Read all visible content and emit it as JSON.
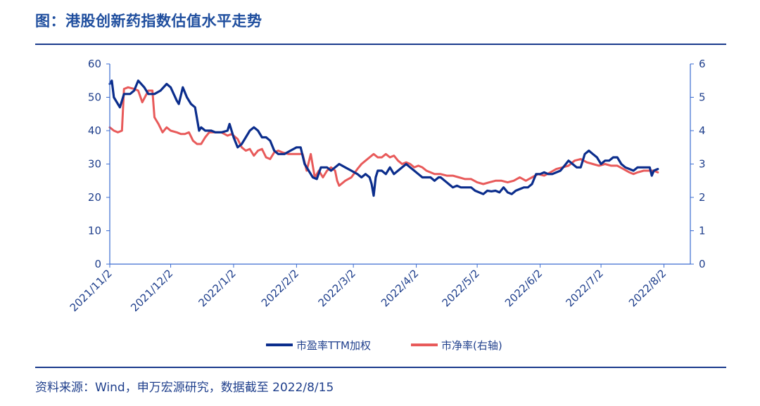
{
  "title": "图：港股创新药指数估值水平走势",
  "source": "资料来源：Wind，申万宏源研究，数据截至 2022/8/15",
  "colors": {
    "pe": "#0b2d8c",
    "pb": "#e85a5a",
    "axis": "#3a6bd0",
    "text": "#1f3f8c",
    "rule": "#1a3a8c"
  },
  "chart_data": {
    "type": "line",
    "x_dates": [
      "2021/11/2",
      "2021/12/2",
      "2022/1/2",
      "2022/2/2",
      "2022/3/2",
      "2022/4/2",
      "2022/5/2",
      "2022/6/2",
      "2022/7/2",
      "2022/8/2"
    ],
    "x_tick_labels": [
      "2021/11/2",
      "2021/12/2",
      "2022/1/2",
      "2022/2/2",
      "2022/3/2",
      "2022/4/2",
      "2022/5/2",
      "2022/6/2",
      "2022/7/2",
      "2022/8/2"
    ],
    "x_start": "2021/11/2",
    "x_end": "2022/8/15",
    "left_axis": {
      "min": 0,
      "max": 60,
      "ticks": [
        "0",
        "10",
        "20",
        "30",
        "40",
        "50",
        "60"
      ]
    },
    "right_axis": {
      "min": 0,
      "max": 6,
      "ticks": [
        "0",
        "1",
        "2",
        "3",
        "4",
        "5",
        "6"
      ]
    },
    "legend": [
      "市盈率TTM加权",
      "市净率(右轴)"
    ],
    "series": [
      {
        "name": "市盈率TTM加权",
        "axis": "left",
        "points": [
          [
            0,
            54
          ],
          [
            1,
            55
          ],
          [
            2,
            50
          ],
          [
            4,
            48
          ],
          [
            5,
            47
          ],
          [
            7,
            51
          ],
          [
            10,
            51
          ],
          [
            12,
            52
          ],
          [
            14,
            55
          ],
          [
            17,
            53
          ],
          [
            19,
            51
          ],
          [
            22,
            51
          ],
          [
            25,
            52
          ],
          [
            28,
            54
          ],
          [
            30,
            53
          ],
          [
            33,
            49
          ],
          [
            34,
            48
          ],
          [
            36,
            53
          ],
          [
            38,
            50
          ],
          [
            40,
            48
          ],
          [
            42,
            47
          ],
          [
            44,
            40
          ],
          [
            45,
            41
          ],
          [
            47,
            40
          ],
          [
            49,
            40
          ],
          [
            50,
            40
          ],
          [
            52,
            39.5
          ],
          [
            55,
            39.5
          ],
          [
            58,
            40
          ],
          [
            59,
            42
          ],
          [
            61,
            38
          ],
          [
            63,
            35
          ],
          [
            65,
            36
          ],
          [
            67,
            38
          ],
          [
            69,
            40
          ],
          [
            71,
            41
          ],
          [
            73,
            40
          ],
          [
            75,
            38
          ],
          [
            77,
            38
          ],
          [
            79,
            37
          ],
          [
            81,
            34
          ],
          [
            83,
            33
          ],
          [
            86,
            33
          ],
          [
            89,
            34
          ],
          [
            92,
            35
          ],
          [
            94,
            35
          ],
          [
            96,
            30
          ],
          [
            98,
            28
          ],
          [
            100,
            26
          ],
          [
            102,
            25.5
          ],
          [
            104,
            29
          ],
          [
            107,
            29
          ],
          [
            109,
            28
          ],
          [
            111,
            29
          ],
          [
            113,
            30
          ],
          [
            116,
            29
          ],
          [
            119,
            28
          ],
          [
            122,
            27
          ],
          [
            124,
            26
          ],
          [
            126,
            27
          ],
          [
            128,
            26
          ],
          [
            129,
            24
          ],
          [
            130,
            20.5
          ],
          [
            131,
            26
          ],
          [
            132,
            28
          ],
          [
            134,
            28
          ],
          [
            136,
            27
          ],
          [
            138,
            29
          ],
          [
            140,
            27
          ],
          [
            142,
            28
          ],
          [
            144,
            29
          ],
          [
            146,
            30
          ],
          [
            148,
            29
          ],
          [
            150,
            28
          ],
          [
            152,
            27
          ],
          [
            154,
            26
          ],
          [
            156,
            26
          ],
          [
            158,
            26
          ],
          [
            160,
            25
          ],
          [
            162,
            26
          ],
          [
            163,
            26
          ],
          [
            165,
            25
          ],
          [
            167,
            24
          ],
          [
            169,
            23
          ],
          [
            171,
            23.5
          ],
          [
            173,
            23
          ],
          [
            175,
            23
          ],
          [
            178,
            23
          ],
          [
            180,
            22
          ],
          [
            182,
            21.5
          ],
          [
            184,
            21
          ],
          [
            186,
            22
          ],
          [
            188,
            21.8
          ],
          [
            190,
            22
          ],
          [
            192,
            21.5
          ],
          [
            194,
            23
          ],
          [
            196,
            21.5
          ],
          [
            198,
            21
          ],
          [
            200,
            22
          ],
          [
            202,
            22.5
          ],
          [
            204,
            23
          ],
          [
            206,
            23
          ],
          [
            208,
            24
          ],
          [
            210,
            27
          ],
          [
            212,
            27
          ],
          [
            214,
            27.5
          ],
          [
            216,
            27
          ],
          [
            218,
            27
          ],
          [
            220,
            27.5
          ],
          [
            222,
            28
          ],
          [
            224,
            29.5
          ],
          [
            226,
            31
          ],
          [
            228,
            30
          ],
          [
            230,
            29
          ],
          [
            232,
            29
          ],
          [
            234,
            33
          ],
          [
            236,
            34
          ],
          [
            238,
            33
          ],
          [
            240,
            32
          ],
          [
            242,
            30
          ],
          [
            244,
            31
          ],
          [
            246,
            31
          ],
          [
            248,
            32
          ],
          [
            250,
            32
          ],
          [
            252,
            30
          ],
          [
            254,
            29
          ],
          [
            256,
            28.5
          ],
          [
            258,
            28
          ],
          [
            260,
            29
          ],
          [
            262,
            29
          ],
          [
            264,
            29
          ],
          [
            266,
            29
          ],
          [
            267,
            26.5
          ],
          [
            268,
            28
          ],
          [
            270,
            28.5
          ]
        ]
      },
      {
        "name": "市净率(右轴)",
        "axis": "right",
        "points": [
          [
            0,
            4.1
          ],
          [
            2,
            4.0
          ],
          [
            4,
            3.95
          ],
          [
            6,
            4.0
          ],
          [
            7,
            5.25
          ],
          [
            9,
            5.3
          ],
          [
            12,
            5.25
          ],
          [
            14,
            5.2
          ],
          [
            16,
            4.85
          ],
          [
            19,
            5.2
          ],
          [
            21,
            5.2
          ],
          [
            22,
            4.4
          ],
          [
            24,
            4.2
          ],
          [
            26,
            3.95
          ],
          [
            28,
            4.1
          ],
          [
            30,
            4.0
          ],
          [
            33,
            3.95
          ],
          [
            35,
            3.9
          ],
          [
            37,
            3.9
          ],
          [
            39,
            3.95
          ],
          [
            41,
            3.7
          ],
          [
            43,
            3.6
          ],
          [
            45,
            3.6
          ],
          [
            47,
            3.8
          ],
          [
            49,
            3.95
          ],
          [
            52,
            3.95
          ],
          [
            55,
            3.95
          ],
          [
            58,
            3.85
          ],
          [
            60,
            3.9
          ],
          [
            62,
            3.8
          ],
          [
            63,
            3.75
          ],
          [
            65,
            3.5
          ],
          [
            67,
            3.4
          ],
          [
            69,
            3.45
          ],
          [
            71,
            3.25
          ],
          [
            73,
            3.4
          ],
          [
            75,
            3.45
          ],
          [
            77,
            3.2
          ],
          [
            79,
            3.15
          ],
          [
            81,
            3.35
          ],
          [
            83,
            3.4
          ],
          [
            85,
            3.35
          ],
          [
            88,
            3.3
          ],
          [
            90,
            3.3
          ],
          [
            93,
            3.3
          ],
          [
            95,
            3.3
          ],
          [
            97,
            2.8
          ],
          [
            99,
            3.3
          ],
          [
            101,
            2.6
          ],
          [
            103,
            2.8
          ],
          [
            105,
            2.6
          ],
          [
            107,
            2.8
          ],
          [
            109,
            2.9
          ],
          [
            111,
            2.8
          ],
          [
            112,
            2.5
          ],
          [
            113,
            2.35
          ],
          [
            116,
            2.5
          ],
          [
            119,
            2.6
          ],
          [
            122,
            2.85
          ],
          [
            124,
            3.0
          ],
          [
            126,
            3.1
          ],
          [
            128,
            3.2
          ],
          [
            130,
            3.3
          ],
          [
            132,
            3.2
          ],
          [
            134,
            3.2
          ],
          [
            136,
            3.3
          ],
          [
            138,
            3.2
          ],
          [
            140,
            3.25
          ],
          [
            142,
            3.1
          ],
          [
            144,
            3.0
          ],
          [
            146,
            3.05
          ],
          [
            148,
            3.0
          ],
          [
            150,
            2.9
          ],
          [
            152,
            2.95
          ],
          [
            154,
            2.9
          ],
          [
            156,
            2.8
          ],
          [
            158,
            2.75
          ],
          [
            160,
            2.7
          ],
          [
            163,
            2.7
          ],
          [
            166,
            2.65
          ],
          [
            169,
            2.65
          ],
          [
            172,
            2.6
          ],
          [
            175,
            2.55
          ],
          [
            178,
            2.55
          ],
          [
            181,
            2.45
          ],
          [
            184,
            2.4
          ],
          [
            187,
            2.45
          ],
          [
            190,
            2.5
          ],
          [
            193,
            2.5
          ],
          [
            196,
            2.45
          ],
          [
            199,
            2.5
          ],
          [
            202,
            2.6
          ],
          [
            205,
            2.5
          ],
          [
            208,
            2.6
          ],
          [
            211,
            2.7
          ],
          [
            214,
            2.65
          ],
          [
            217,
            2.75
          ],
          [
            220,
            2.85
          ],
          [
            223,
            2.9
          ],
          [
            226,
            2.95
          ],
          [
            229,
            3.1
          ],
          [
            232,
            3.15
          ],
          [
            235,
            3.05
          ],
          [
            238,
            3.0
          ],
          [
            241,
            2.95
          ],
          [
            244,
            3.0
          ],
          [
            247,
            2.95
          ],
          [
            250,
            2.95
          ],
          [
            253,
            2.85
          ],
          [
            256,
            2.75
          ],
          [
            258,
            2.7
          ],
          [
            260,
            2.75
          ],
          [
            263,
            2.8
          ],
          [
            266,
            2.8
          ],
          [
            268,
            2.8
          ],
          [
            270,
            2.75
          ]
        ]
      }
    ]
  }
}
